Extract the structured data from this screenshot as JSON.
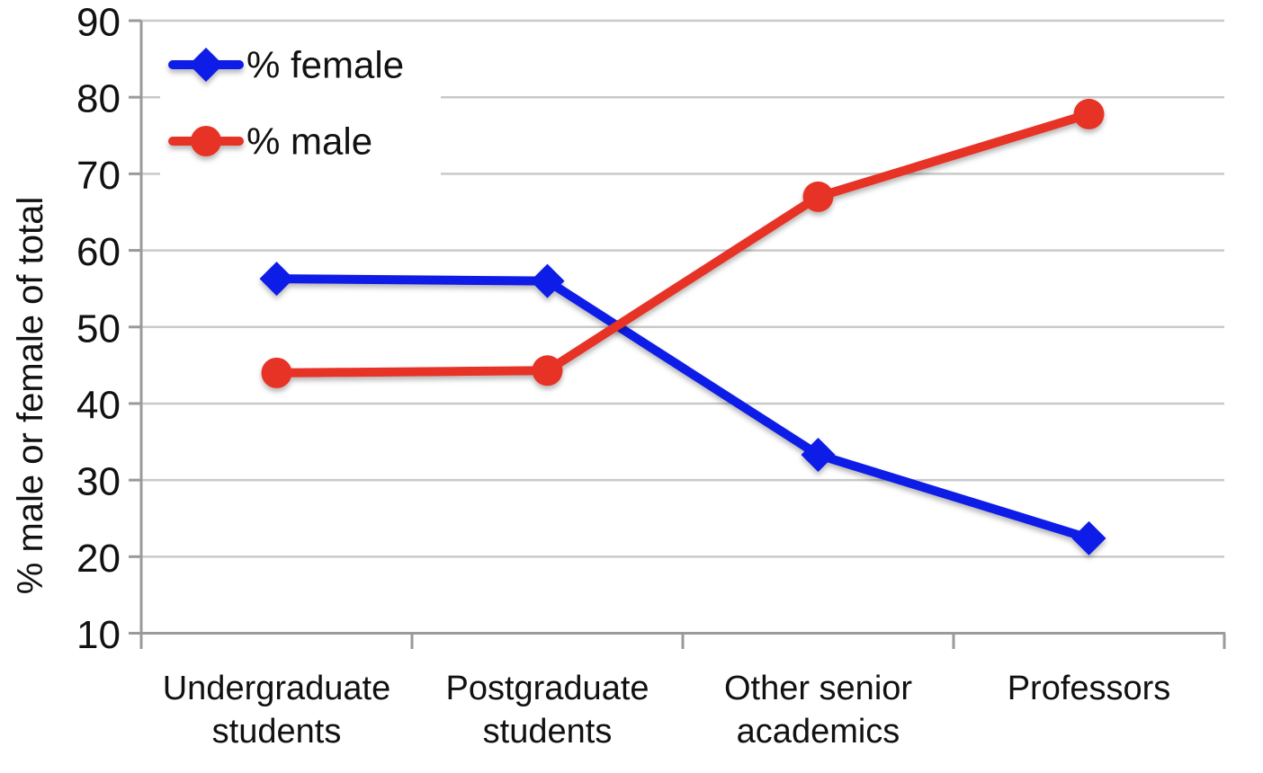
{
  "figure": {
    "background": "#ffffff"
  },
  "chart_data": {
    "type": "line",
    "title": "",
    "xlabel": "",
    "ylabel": "% male or female of total",
    "categories": [
      "Undergraduate students",
      "Postgraduate students",
      "Other senior academics",
      "Professors"
    ],
    "category_label_lines": [
      [
        "Undergraduate",
        "students"
      ],
      [
        "Postgraduate",
        "students"
      ],
      [
        "Other senior",
        "academics"
      ],
      [
        "Professors"
      ]
    ],
    "series": [
      {
        "name": "% female",
        "marker": "diamond",
        "color": "#0f1ce6",
        "values": [
          56.3,
          56.0,
          33.3,
          22.4
        ]
      },
      {
        "name": "% male",
        "marker": "circle",
        "color": "#e73227",
        "values": [
          44.0,
          44.3,
          67.0,
          77.8
        ]
      }
    ],
    "ylim": [
      10,
      90
    ],
    "yticks": [
      10,
      20,
      30,
      40,
      50,
      60,
      70,
      80,
      90
    ],
    "grid": true,
    "legend": {
      "position": "top-left-inside",
      "entries": [
        "% female",
        "% male"
      ]
    },
    "colors": {
      "axis": "#9a9a9a",
      "grid": "#c9c9c9",
      "text": "#111111",
      "legend_background": "#ffffff"
    }
  }
}
